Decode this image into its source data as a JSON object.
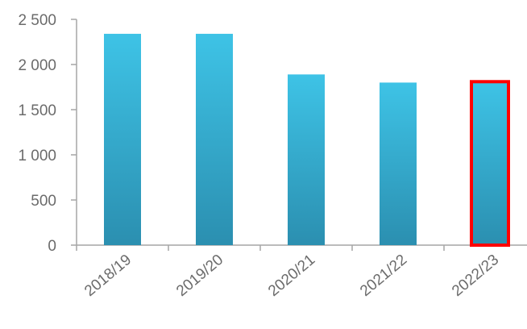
{
  "chart_data": {
    "type": "bar",
    "title": "",
    "xlabel": "",
    "ylabel": "",
    "categories": [
      "2018/19",
      "2019/20",
      "2020/21",
      "2021/22",
      "2022/23"
    ],
    "values": [
      2340,
      2340,
      1890,
      1800,
      1810
    ],
    "ylim": [
      0,
      2500
    ],
    "yticks": [
      0,
      500,
      1000,
      1500,
      2000,
      2500
    ],
    "ytick_labels": [
      "0",
      "500",
      "1 000",
      "1 500",
      "2 000",
      "2 500"
    ],
    "grid": false,
    "legend": "none",
    "highlighted_category": "2022/23",
    "colors": {
      "bar_top": "#3ec3e6",
      "bar_bottom": "#2b8fb0",
      "highlight_outline": "#ff0000",
      "axis": "#a6a6a6",
      "tick_text": "#6b6b6b"
    }
  }
}
